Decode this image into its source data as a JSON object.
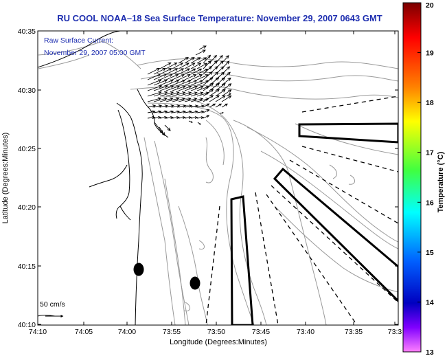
{
  "title": "RU COOL  NOAA–18  Sea Surface Temperature:  November 29, 2007 0643 GMT",
  "current_overlay": {
    "label_line1": "Raw Surface Current:",
    "label_line2": "November 29, 2007 05:00 GMT"
  },
  "scale_bar": {
    "label": "50 cm/s"
  },
  "axes": {
    "xlabel": "Longitude (Degrees:Minutes)",
    "ylabel": "Latitude (Degrees:Minutes)",
    "x_ticks": [
      "74:10",
      "74:05",
      "74:00",
      "73:55",
      "73:50",
      "73:45",
      "73:40",
      "73:35",
      "73:3"
    ],
    "y_ticks": [
      "40:35",
      "40:30",
      "40:25",
      "40:20",
      "40:15",
      "40:10"
    ]
  },
  "colorbar": {
    "label": "Temperature (°C)",
    "min": 13,
    "max": 20,
    "ticks": [
      "20",
      "19",
      "18",
      "17",
      "16",
      "15",
      "14",
      "13"
    ],
    "colors": [
      "#7a0000",
      "#ff0000",
      "#ff8000",
      "#ffff00",
      "#40ff40",
      "#00ffff",
      "#0060ff",
      "#0000c0",
      "#8000ff",
      "#ff80ff"
    ]
  },
  "colors": {
    "title": "#1f2fb0",
    "contour": "#999999",
    "coast": "#000000"
  },
  "icons": {
    "vector_arrows": "current-vector-icon",
    "buoy_markers": "buoy-marker-icon",
    "scale_arrow": "scale-arrow-icon"
  }
}
